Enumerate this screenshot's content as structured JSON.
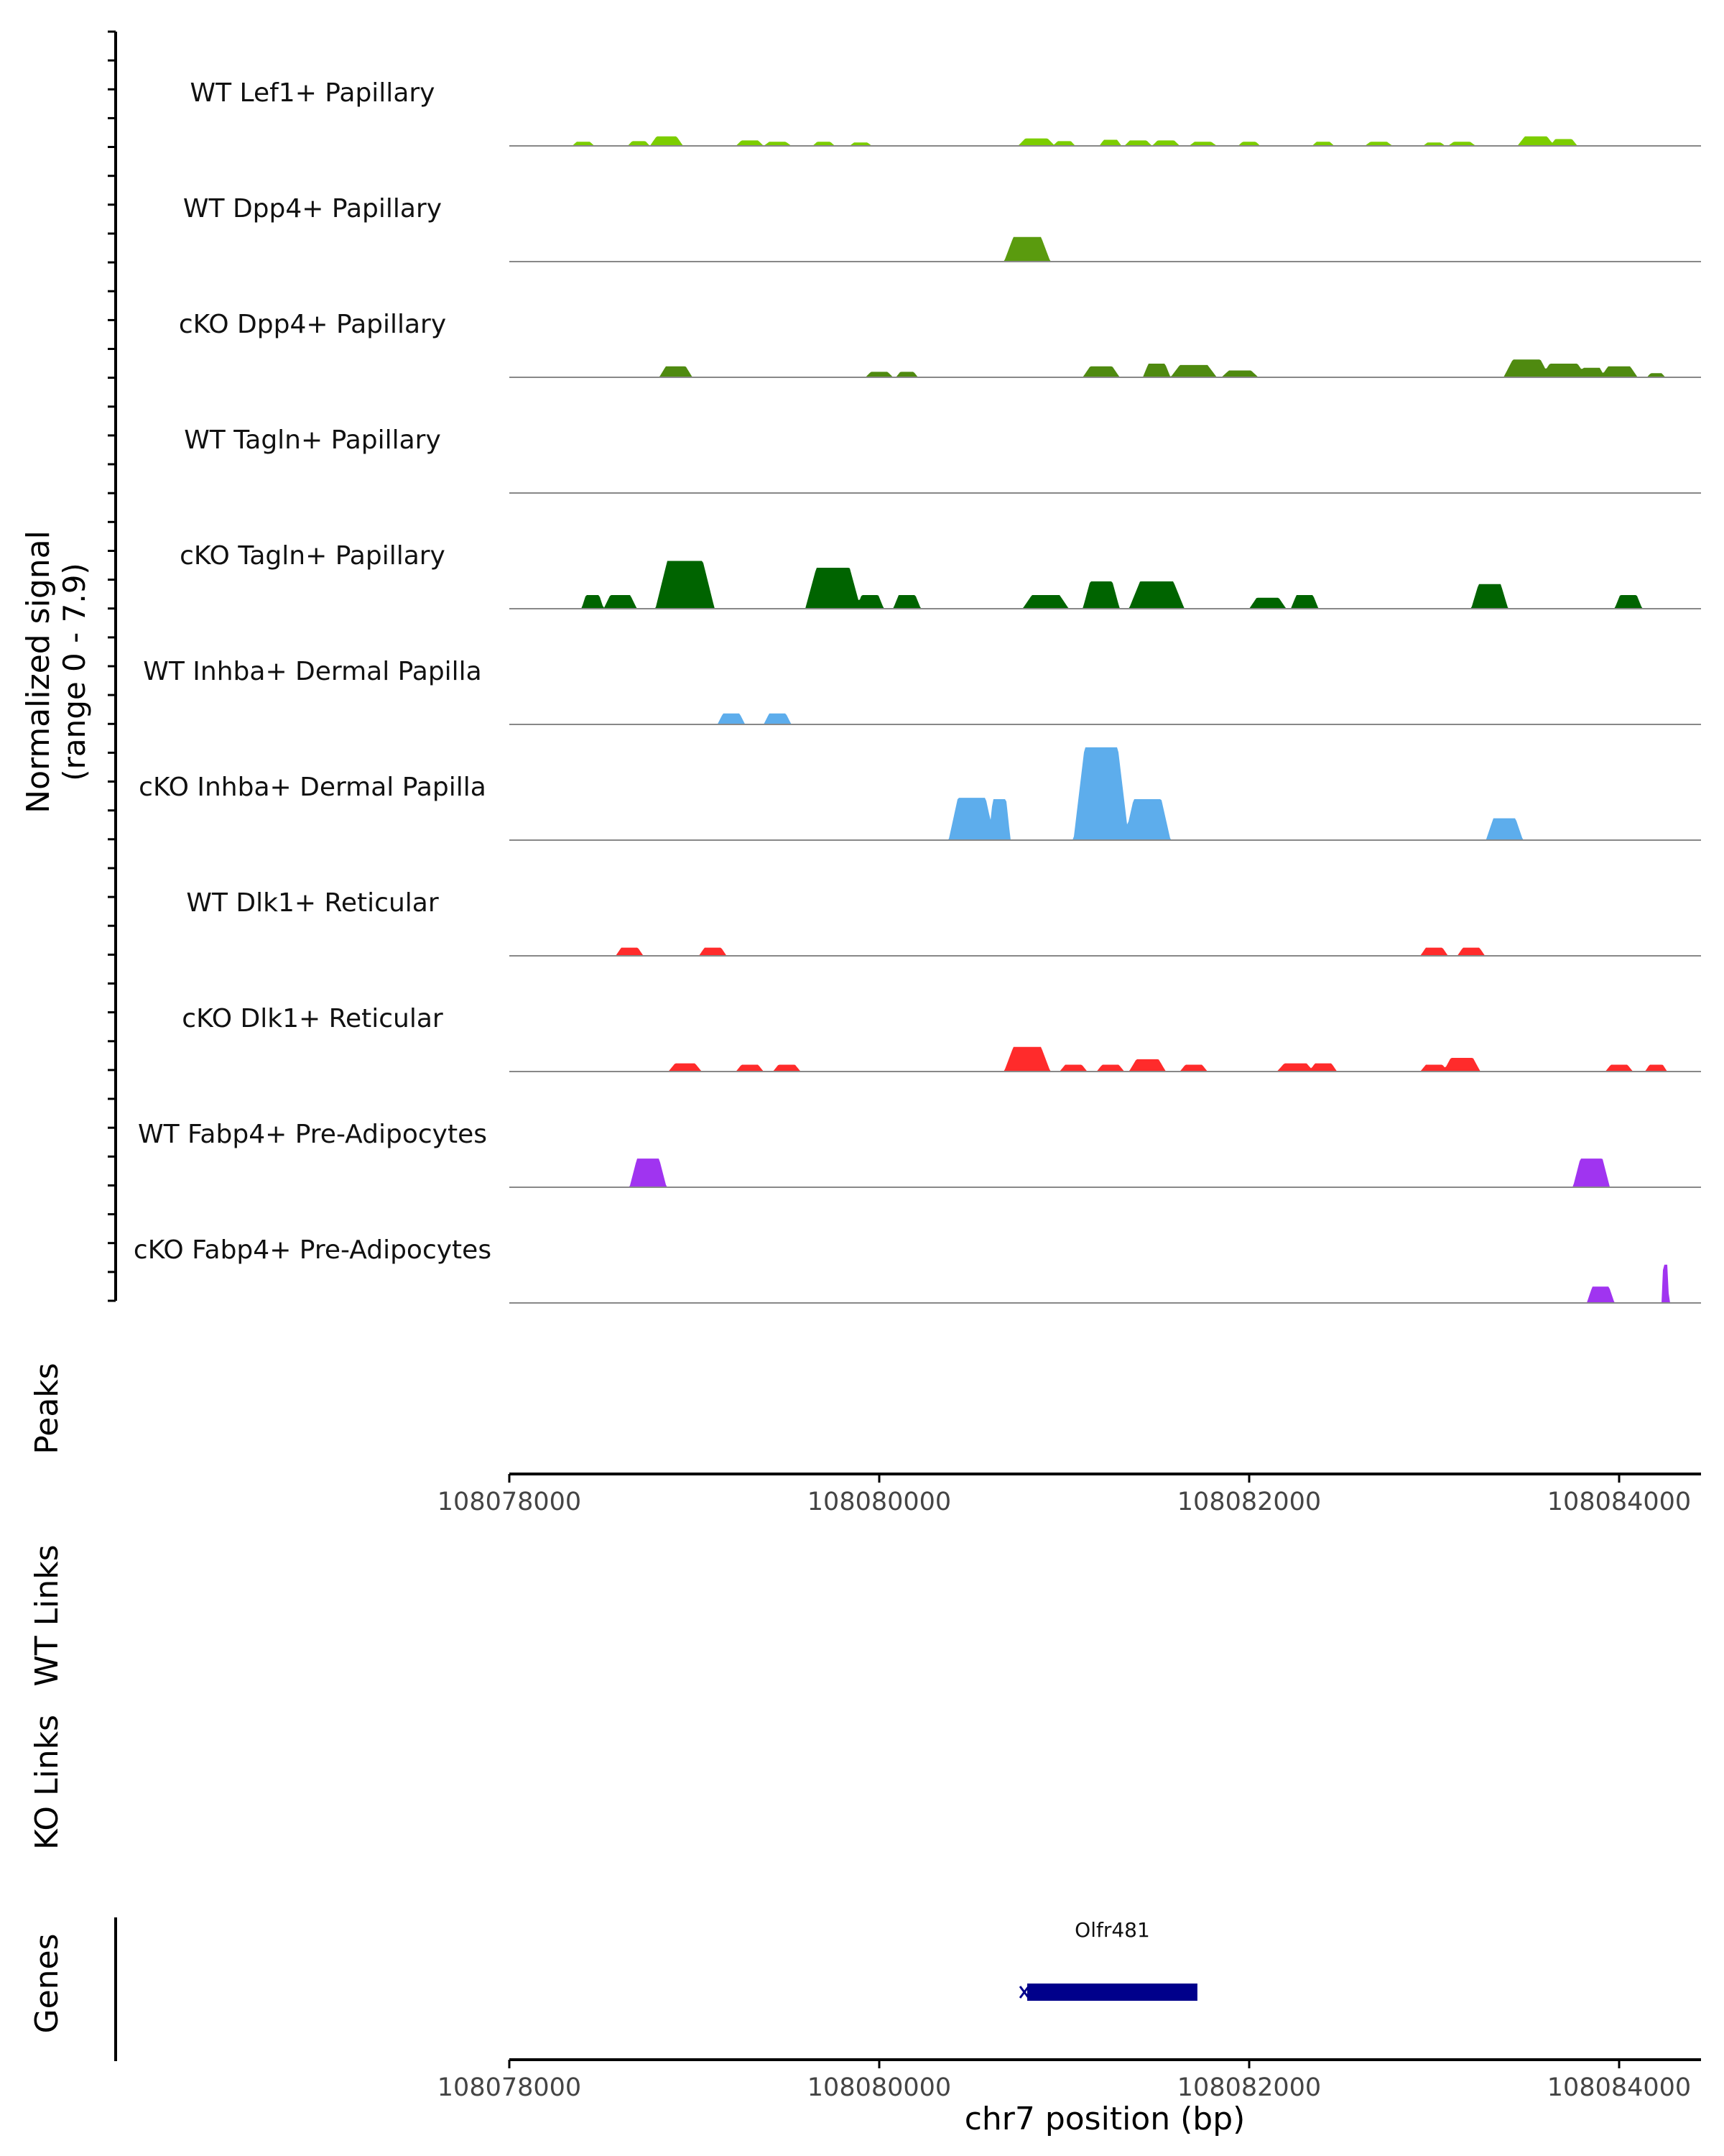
{
  "chart_data": {
    "type": "area",
    "ylabel_line1": "Normalized signal",
    "ylabel_line2": "(range 0 - 7.9)",
    "y_range": [
      0,
      7.9
    ],
    "xlabel": "chr7 position (bp)",
    "xlim": [
      108078000,
      108084500
    ],
    "x_ticks": [
      108078000,
      108080000,
      108082000,
      108084000
    ],
    "x_tick_labels": [
      "108078000",
      "108080000",
      "108082000",
      "108084000"
    ],
    "tracks": [
      {
        "name": "WT Lef1+ Papillary",
        "color": "#7CCD00",
        "peaks": [
          [
            108078400,
            0.3,
            120
          ],
          [
            108078700,
            0.35,
            120
          ],
          [
            108078850,
            0.7,
            180
          ],
          [
            108079300,
            0.4,
            150
          ],
          [
            108079450,
            0.3,
            150
          ],
          [
            108079700,
            0.3,
            120
          ],
          [
            108079900,
            0.25,
            120
          ],
          [
            108080850,
            0.55,
            200
          ],
          [
            108081000,
            0.35,
            120
          ],
          [
            108081250,
            0.45,
            120
          ],
          [
            108081400,
            0.4,
            150
          ],
          [
            108081550,
            0.4,
            150
          ],
          [
            108081750,
            0.3,
            150
          ],
          [
            108082000,
            0.3,
            120
          ],
          [
            108082400,
            0.3,
            120
          ],
          [
            108082700,
            0.3,
            150
          ],
          [
            108083000,
            0.25,
            120
          ],
          [
            108083150,
            0.3,
            150
          ],
          [
            108083550,
            0.7,
            200
          ],
          [
            108083700,
            0.5,
            150
          ]
        ]
      },
      {
        "name": "WT Dpp4+ Papillary",
        "color": "#5A9B0E",
        "peaks": [
          [
            108080800,
            1.8,
            250
          ]
        ]
      },
      {
        "name": "cKO Dpp4+ Papillary",
        "color": "#4F8A10",
        "peaks": [
          [
            108078900,
            0.8,
            180
          ],
          [
            108080000,
            0.4,
            150
          ],
          [
            108080150,
            0.4,
            120
          ],
          [
            108081200,
            0.8,
            200
          ],
          [
            108081500,
            1.0,
            150
          ],
          [
            108081700,
            0.9,
            250
          ],
          [
            108081950,
            0.5,
            200
          ],
          [
            108083500,
            1.3,
            250
          ],
          [
            108083700,
            1.0,
            250
          ],
          [
            108083850,
            0.7,
            150
          ],
          [
            108084000,
            0.8,
            200
          ],
          [
            108084200,
            0.3,
            100
          ]
        ]
      },
      {
        "name": "WT Tagln+ Papillary",
        "color": "#006400",
        "peaks": []
      },
      {
        "name": "cKO Tagln+ Papillary",
        "color": "#006400",
        "peaks": [
          [
            108078450,
            1.0,
            120
          ],
          [
            108078600,
            1.0,
            180
          ],
          [
            108078950,
            3.5,
            320
          ],
          [
            108079000,
            2.0,
            150
          ],
          [
            108079750,
            3.0,
            300
          ],
          [
            108079950,
            1.0,
            150
          ],
          [
            108080150,
            1.0,
            150
          ],
          [
            108080900,
            1.0,
            250
          ],
          [
            108081200,
            2.0,
            200
          ],
          [
            108081500,
            2.0,
            300
          ],
          [
            108082100,
            0.8,
            200
          ],
          [
            108082300,
            1.0,
            150
          ],
          [
            108083300,
            1.8,
            200
          ],
          [
            108084050,
            1.0,
            150
          ]
        ]
      },
      {
        "name": "WT Inhba+ Dermal Papilla",
        "color": "#5DADEC",
        "peaks": [
          [
            108079200,
            0.8,
            150
          ],
          [
            108079450,
            0.8,
            150
          ]
        ]
      },
      {
        "name": "cKO Inhba+ Dermal Papilla",
        "color": "#5DADEC",
        "peaks": [
          [
            108080500,
            3.1,
            250
          ],
          [
            108080650,
            3.0,
            120
          ],
          [
            108081200,
            6.8,
            300
          ],
          [
            108081250,
            4.5,
            200
          ],
          [
            108081450,
            3.0,
            250
          ],
          [
            108083380,
            1.6,
            200
          ]
        ]
      },
      {
        "name": "WT Dlk1+ Reticular",
        "color": "#FF2B2B",
        "peaks": [
          [
            108078650,
            0.6,
            150
          ],
          [
            108079100,
            0.6,
            150
          ],
          [
            108083000,
            0.6,
            150
          ],
          [
            108083200,
            0.6,
            150
          ]
        ]
      },
      {
        "name": "cKO Dlk1+ Reticular",
        "color": "#FF2B2B",
        "peaks": [
          [
            108078950,
            0.6,
            180
          ],
          [
            108079300,
            0.5,
            150
          ],
          [
            108079500,
            0.5,
            150
          ],
          [
            108080800,
            1.8,
            250
          ],
          [
            108081050,
            0.5,
            150
          ],
          [
            108081250,
            0.5,
            150
          ],
          [
            108081450,
            0.9,
            200
          ],
          [
            108081700,
            0.5,
            150
          ],
          [
            108082250,
            0.6,
            200
          ],
          [
            108082400,
            0.6,
            150
          ],
          [
            108083000,
            0.5,
            150
          ],
          [
            108083150,
            1.0,
            200
          ],
          [
            108084000,
            0.5,
            150
          ],
          [
            108084200,
            0.5,
            120
          ]
        ]
      },
      {
        "name": "WT Fabp4+ Pre-Adipocytes",
        "color": "#A034F0",
        "peaks": [
          [
            108078750,
            2.1,
            200
          ],
          [
            108083850,
            2.1,
            200
          ]
        ]
      },
      {
        "name": "cKO Fabp4+ Pre-Adipocytes",
        "color": "#A034F0",
        "peaks": [
          [
            108083900,
            1.2,
            150
          ],
          [
            108084250,
            2.8,
            40
          ]
        ]
      }
    ],
    "empty_tracks": [
      "Peaks",
      "WT Links",
      "KO Links"
    ],
    "genes_label": "Genes",
    "gene": {
      "name": "Olfr481",
      "start": 108080800,
      "end": 108081720,
      "color": "#00008B",
      "strand": "-"
    }
  }
}
